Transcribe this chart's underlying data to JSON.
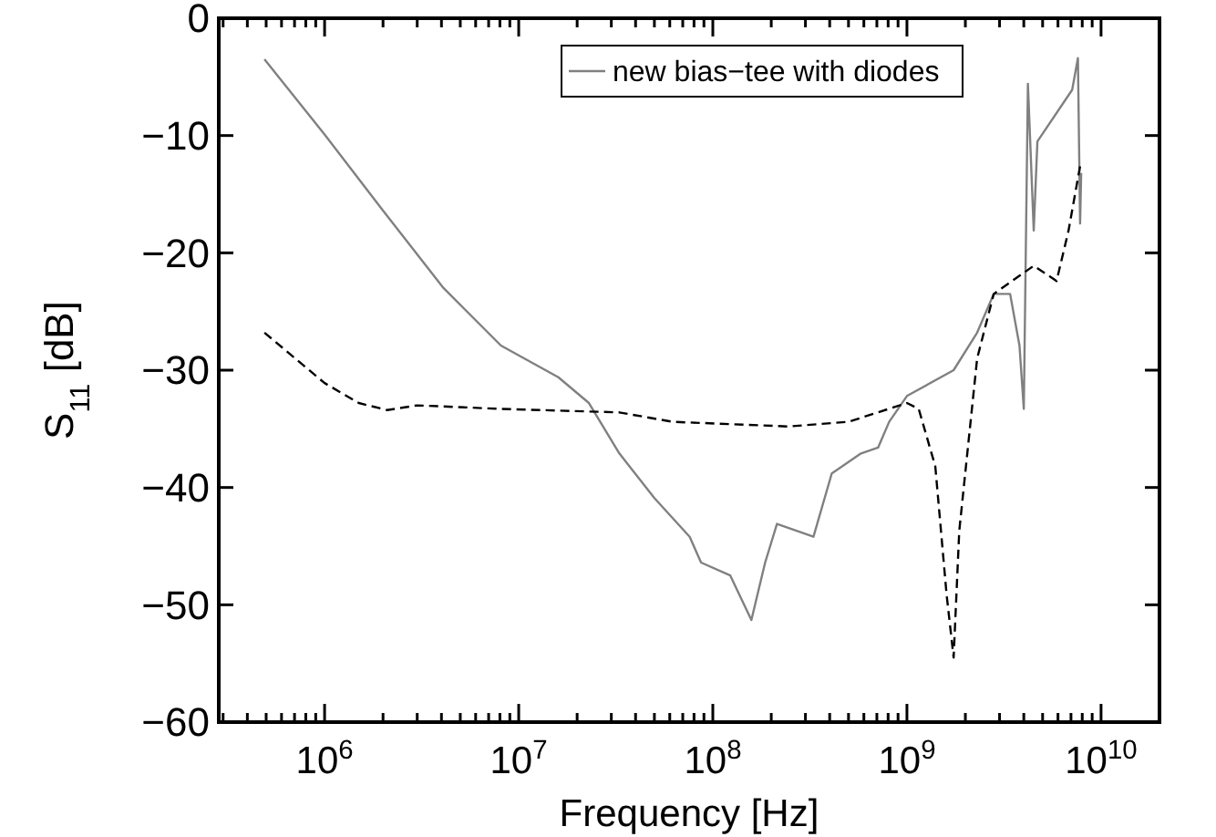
{
  "chart_data": {
    "type": "line",
    "xlabel": "Frequency [Hz]",
    "ylabel": "S$_{11}$ [dB]",
    "log": "x",
    "xlim": [
      285000,
      20000000000
    ],
    "ylim": [
      -60,
      0
    ],
    "xticks": [
      {
        "value": 300000,
        "label": null
      },
      {
        "value": 400000,
        "label": null
      },
      {
        "value": 500000,
        "label": null
      },
      {
        "value": 600000,
        "label": null
      },
      {
        "value": 700000,
        "label": null
      },
      {
        "value": 800000,
        "label": null
      },
      {
        "value": 900000,
        "label": null
      },
      {
        "value": 1000000,
        "label": "10$^{6}$"
      },
      {
        "value": 2000000,
        "label": null
      },
      {
        "value": 3000000,
        "label": null
      },
      {
        "value": 4000000,
        "label": null
      },
      {
        "value": 5000000,
        "label": null
      },
      {
        "value": 6000000,
        "label": null
      },
      {
        "value": 7000000,
        "label": null
      },
      {
        "value": 8000000,
        "label": null
      },
      {
        "value": 9000000,
        "label": null
      },
      {
        "value": 10000000,
        "label": "10$^{7}$"
      },
      {
        "value": 20000000,
        "label": null
      },
      {
        "value": 30000000,
        "label": null
      },
      {
        "value": 40000000,
        "label": null
      },
      {
        "value": 50000000,
        "label": null
      },
      {
        "value": 60000000,
        "label": null
      },
      {
        "value": 70000000,
        "label": null
      },
      {
        "value": 80000000,
        "label": null
      },
      {
        "value": 90000000,
        "label": null
      },
      {
        "value": 100000000,
        "label": "10$^{8}$"
      },
      {
        "value": 200000000,
        "label": null
      },
      {
        "value": 300000000,
        "label": null
      },
      {
        "value": 400000000,
        "label": null
      },
      {
        "value": 500000000,
        "label": null
      },
      {
        "value": 600000000,
        "label": null
      },
      {
        "value": 700000000,
        "label": null
      },
      {
        "value": 800000000,
        "label": null
      },
      {
        "value": 900000000,
        "label": null
      },
      {
        "value": 1000000000,
        "label": "10$^{9}$"
      },
      {
        "value": 2000000000,
        "label": null
      },
      {
        "value": 3000000000,
        "label": null
      },
      {
        "value": 4000000000,
        "label": null
      },
      {
        "value": 5000000000,
        "label": null
      },
      {
        "value": 6000000000,
        "label": null
      },
      {
        "value": 7000000000,
        "label": null
      },
      {
        "value": 8000000000,
        "label": null
      },
      {
        "value": 9000000000,
        "label": null
      },
      {
        "value": 10000000000,
        "label": "10$^{10}$"
      }
    ],
    "yticks": [
      {
        "value": -60,
        "label": "−60"
      },
      {
        "value": -50,
        "label": "−50"
      },
      {
        "value": -40,
        "label": "−40"
      },
      {
        "value": -30,
        "label": "−30"
      },
      {
        "value": -20,
        "label": "−20"
      },
      {
        "value": -10,
        "label": "−10"
      },
      0
    ],
    "grid": false,
    "legend": "top",
    "series": [
      {
        "name": "new bias−tee with diodes",
        "color": "#808080",
        "line_style": "solid",
        "x": [
          490000,
          1000000,
          2000000,
          4100000,
          8100000,
          16000000,
          23000000,
          33000000,
          50000000,
          76000000,
          87000000,
          123000000,
          158000000,
          186000000,
          214000000,
          330000000,
          410000000,
          580000000,
          710000000,
          810000000,
          1000000000,
          1740000000,
          2300000000,
          2800000000,
          3400000000,
          3800000000,
          4000000000,
          4200000000,
          4500000000,
          4700000000,
          7100000000,
          7600000000,
          7800000000,
          7900000000
        ],
        "values": [
          -3.5,
          -9.9,
          -16.4,
          -23,
          -27.9,
          -30.6,
          -32.8,
          -37.1,
          -40.9,
          -44.2,
          -46.4,
          -47.5,
          -51.3,
          -46.4,
          -43.1,
          -44.2,
          -38.8,
          -37.1,
          -36.6,
          -34.4,
          -32.2,
          -30,
          -26.8,
          -23.5,
          -23.5,
          -27.9,
          -33.3,
          -5.6,
          -18.1,
          -10.5,
          -6.1,
          -3.4,
          -17.5,
          -13.2
        ]
      },
      {
        "color": "#000000",
        "line_style": "dashed",
        "x": [
          490000,
          1000000,
          1500000,
          2100000,
          3000000,
          8100000,
          33000000,
          62000000,
          245000000,
          500000000,
          1000000000,
          1150000000,
          1400000000,
          1600000000,
          1740000000,
          1860000000,
          2300000000,
          2800000000,
          4500000000,
          5900000000,
          6800000000,
          7800000000
        ],
        "values": [
          -26.8,
          -31.1,
          -32.8,
          -33.4,
          -33,
          -33.3,
          -33.6,
          -34.4,
          -34.8,
          -34.4,
          -32.8,
          -33.3,
          -38.2,
          -49.1,
          -54.5,
          -43.7,
          -29,
          -23.5,
          -21.1,
          -22.4,
          -18.1,
          -12.6
        ]
      }
    ]
  }
}
